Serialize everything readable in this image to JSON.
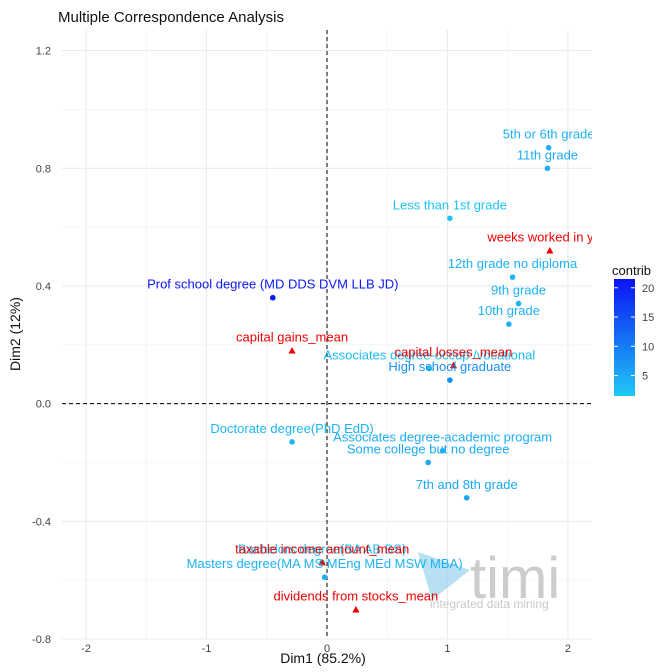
{
  "chart_data": {
    "type": "scatter",
    "title": "Multiple Correspondence Analysis",
    "xlabel": "Dim1 (85.2%)",
    "ylabel": "Dim2 (12%)",
    "xlim": [
      -2.2,
      2.2
    ],
    "ylim": [
      -0.8,
      1.27
    ],
    "xticks": [
      -2,
      -1,
      0,
      1,
      2
    ],
    "yticks": [
      -0.8,
      -0.4,
      0.0,
      0.4,
      0.8,
      1.2
    ],
    "xtick_labels": [
      "-2",
      "-1",
      "0",
      "1",
      "2"
    ],
    "ytick_labels": [
      "-0.8",
      "-0.4",
      "0.0",
      "0.4",
      "0.8",
      "1.2"
    ],
    "grid": true,
    "reference_lines": {
      "x": 0,
      "y": 0,
      "style": "dashed"
    },
    "legend": {
      "title": "contrib",
      "placement": "right",
      "ticks": [
        5,
        10,
        15,
        20
      ],
      "range": [
        1.5,
        21.5
      ],
      "colors": [
        "#1fc8f5",
        "#0a14f5"
      ]
    },
    "categories": [
      {
        "label": "5th or 6th grade",
        "x": 1.84,
        "y": 0.87,
        "contrib": 4
      },
      {
        "label": "11th grade",
        "x": 1.83,
        "y": 0.8,
        "contrib": 4.5
      },
      {
        "label": "Less than 1st grade",
        "x": 1.02,
        "y": 0.63,
        "contrib": 2
      },
      {
        "label": "12th grade no diploma",
        "x": 1.54,
        "y": 0.43,
        "contrib": 4
      },
      {
        "label": "9th grade",
        "x": 1.59,
        "y": 0.34,
        "contrib": 4
      },
      {
        "label": "10th grade",
        "x": 1.51,
        "y": 0.27,
        "contrib": 4
      },
      {
        "label": "Prof school degree (MD DDS DVM LLB JD)",
        "x": -0.45,
        "y": 0.36,
        "contrib": 21
      },
      {
        "label": "Associates degree-occup /vocational",
        "x": 0.85,
        "y": 0.12,
        "contrib": 3
      },
      {
        "label": "High school graduate",
        "x": 1.02,
        "y": 0.08,
        "contrib": 8
      },
      {
        "label": "Doctorate degree(PhD EdD)",
        "x": -0.29,
        "y": -0.13,
        "contrib": 3.5
      },
      {
        "label": "Associates degree-academic program",
        "x": 0.96,
        "y": -0.16,
        "contrib": 4.5
      },
      {
        "label": "Some college but no degree",
        "x": 0.84,
        "y": -0.2,
        "contrib": 5
      },
      {
        "label": "7th and 8th grade",
        "x": 1.16,
        "y": -0.32,
        "contrib": 5
      },
      {
        "label": "Bachelors degree(BA AB BS)",
        "x": -0.04,
        "y": -0.54,
        "contrib": 3
      },
      {
        "label": "Masters degree(MA MS MEng MEd MSW MBA)",
        "x": -0.02,
        "y": -0.59,
        "contrib": 4
      }
    ],
    "supplementary": {
      "color": "#ee0000",
      "marker": "triangle",
      "points": [
        {
          "label": "weeks worked in year",
          "x": 1.85,
          "y": 0.52
        },
        {
          "label": "capital gains_mean",
          "x": -0.29,
          "y": 0.18
        },
        {
          "label": "capital losses_mean",
          "x": 1.05,
          "y": 0.13
        },
        {
          "label": "taxable income amount_mean",
          "x": -0.04,
          "y": -0.54
        },
        {
          "label": "dividends from stocks_mean",
          "x": 0.24,
          "y": -0.7
        }
      ]
    }
  },
  "watermark": {
    "brand": "timi",
    "tagline": "integrated data mining"
  }
}
